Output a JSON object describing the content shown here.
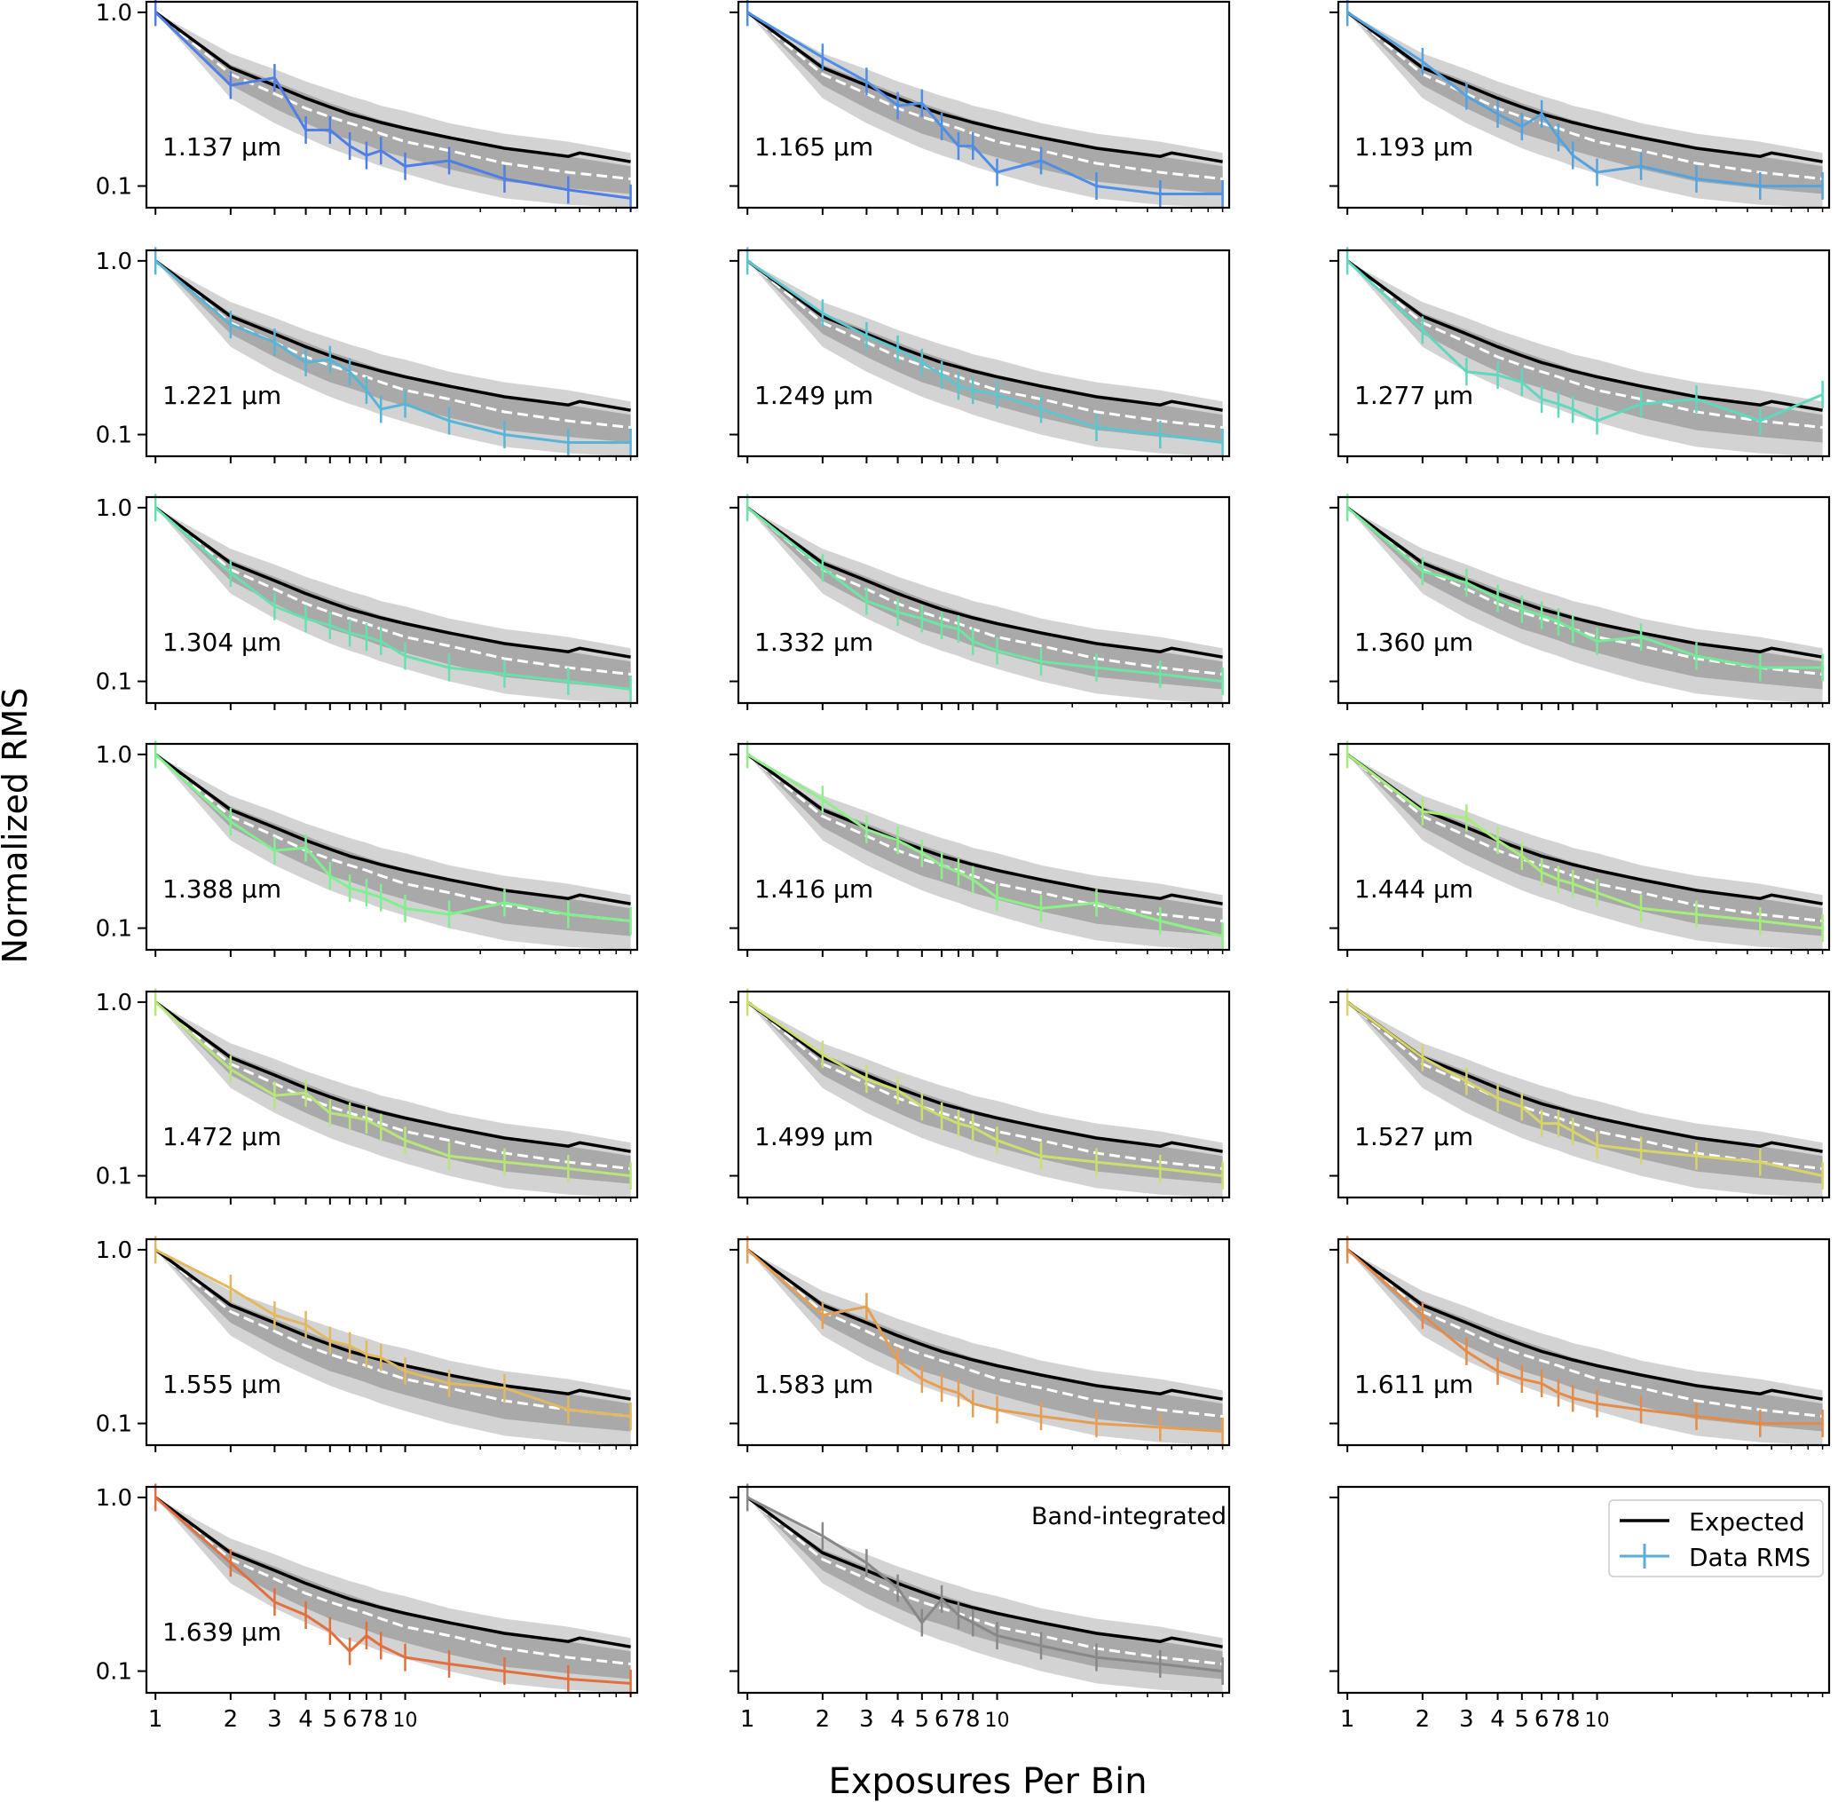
{
  "figure": {
    "ylabel": "Normalized RMS",
    "xlabel": "Exposures Per Bin",
    "legend": {
      "expected_label": "Expected",
      "data_label": "Data RMS",
      "placement": "bottom-right panel"
    }
  },
  "colors": {
    "expected": "#000000",
    "expected_white_dashed": "#ffffff",
    "band_outer": "#d3d3d3",
    "band_inner": "#a9a9a9",
    "legend_data": "#5aaedc"
  },
  "chart_data": {
    "type": "line",
    "scale": {
      "x": "log",
      "y": "log"
    },
    "xlim": [
      0.92,
      85
    ],
    "ylim": [
      0.075,
      1.15
    ],
    "x_ticks": [
      1,
      2,
      3,
      4,
      5,
      6,
      7,
      8,
      10
    ],
    "x_tick_labels": [
      "1",
      "2",
      "3",
      "4",
      "5",
      "6",
      "7",
      "8",
      "10"
    ],
    "y_ticks": [
      1.0,
      0.1
    ],
    "y_tick_labels": [
      "1.0",
      "0.1"
    ],
    "panels": [
      {
        "label": "1.137 μm",
        "color": "#4f7ee6",
        "rms": [
          1.0,
          0.38,
          0.42,
          0.21,
          0.21,
          0.17,
          0.15,
          0.16,
          0.13,
          0.14,
          0.11,
          0.095,
          0.085
        ]
      },
      {
        "label": "1.165 μm",
        "color": "#4e8ee6",
        "rms": [
          1.0,
          0.55,
          0.4,
          0.29,
          0.3,
          0.22,
          0.17,
          0.17,
          0.12,
          0.14,
          0.1,
          0.09,
          0.09
        ]
      },
      {
        "label": "1.193 μm",
        "color": "#55a3de",
        "rms": [
          1.0,
          0.52,
          0.33,
          0.26,
          0.22,
          0.26,
          0.19,
          0.15,
          0.12,
          0.13,
          0.11,
          0.1,
          0.1
        ]
      },
      {
        "label": "1.221 μm",
        "color": "#58b5d8",
        "rms": [
          1.0,
          0.43,
          0.34,
          0.26,
          0.27,
          0.23,
          0.18,
          0.14,
          0.15,
          0.12,
          0.1,
          0.09,
          0.09
        ]
      },
      {
        "label": "1.249 μm",
        "color": "#5ac6d0",
        "rms": [
          1.0,
          0.5,
          0.37,
          0.31,
          0.26,
          0.22,
          0.19,
          0.18,
          0.17,
          0.14,
          0.11,
          0.1,
          0.09
        ]
      },
      {
        "label": "1.277 μm",
        "color": "#5fd8c0",
        "rms": [
          1.0,
          0.4,
          0.23,
          0.22,
          0.2,
          0.16,
          0.15,
          0.14,
          0.12,
          0.15,
          0.16,
          0.12,
          0.17
        ]
      },
      {
        "label": "1.304 μm",
        "color": "#68e0ae",
        "rms": [
          1.0,
          0.42,
          0.27,
          0.23,
          0.21,
          0.19,
          0.18,
          0.17,
          0.14,
          0.12,
          0.11,
          0.1,
          0.09
        ]
      },
      {
        "label": "1.332 μm",
        "color": "#6ce6a2",
        "rms": [
          1.0,
          0.45,
          0.29,
          0.25,
          0.23,
          0.21,
          0.2,
          0.17,
          0.15,
          0.13,
          0.12,
          0.11,
          0.1
        ]
      },
      {
        "label": "1.360 μm",
        "color": "#73ea98",
        "rms": [
          1.0,
          0.43,
          0.37,
          0.3,
          0.26,
          0.24,
          0.22,
          0.2,
          0.17,
          0.18,
          0.14,
          0.12,
          0.12
        ]
      },
      {
        "label": "1.388 μm",
        "color": "#7ef08e",
        "rms": [
          1.0,
          0.41,
          0.28,
          0.29,
          0.2,
          0.17,
          0.16,
          0.15,
          0.13,
          0.12,
          0.14,
          0.12,
          0.11
        ]
      },
      {
        "label": "1.416 μm",
        "color": "#8ef088",
        "rms": [
          1.0,
          0.55,
          0.37,
          0.32,
          0.27,
          0.23,
          0.21,
          0.19,
          0.15,
          0.13,
          0.14,
          0.11,
          0.09
        ]
      },
      {
        "label": "1.444 μm",
        "color": "#a6ee7a",
        "rms": [
          1.0,
          0.47,
          0.43,
          0.32,
          0.26,
          0.21,
          0.19,
          0.18,
          0.16,
          0.13,
          0.12,
          0.11,
          0.1
        ]
      },
      {
        "label": "1.472 μm",
        "color": "#b8e67a",
        "rms": [
          1.0,
          0.41,
          0.29,
          0.3,
          0.23,
          0.22,
          0.21,
          0.19,
          0.16,
          0.13,
          0.12,
          0.11,
          0.1
        ]
      },
      {
        "label": "1.499 μm",
        "color": "#cae06c",
        "rms": [
          1.0,
          0.5,
          0.36,
          0.31,
          0.25,
          0.22,
          0.2,
          0.19,
          0.16,
          0.13,
          0.12,
          0.11,
          0.1
        ]
      },
      {
        "label": "1.527 μm",
        "color": "#d8d46a",
        "rms": [
          1.0,
          0.48,
          0.35,
          0.28,
          0.25,
          0.2,
          0.2,
          0.18,
          0.15,
          0.14,
          0.13,
          0.12,
          0.1
        ]
      },
      {
        "label": "1.555 μm",
        "color": "#e2b860",
        "rms": [
          1.0,
          0.6,
          0.42,
          0.37,
          0.3,
          0.28,
          0.25,
          0.24,
          0.2,
          0.17,
          0.16,
          0.12,
          0.11
        ]
      },
      {
        "label": "1.583 μm",
        "color": "#e69f52",
        "rms": [
          1.0,
          0.42,
          0.47,
          0.23,
          0.18,
          0.16,
          0.15,
          0.13,
          0.12,
          0.11,
          0.1,
          0.095,
          0.09
        ]
      },
      {
        "label": "1.611 μm",
        "color": "#e58b48",
        "rms": [
          1.0,
          0.42,
          0.26,
          0.2,
          0.18,
          0.17,
          0.15,
          0.14,
          0.13,
          0.12,
          0.11,
          0.1,
          0.1
        ]
      },
      {
        "label": "1.639 μm",
        "color": "#e2703e",
        "rms": [
          1.0,
          0.42,
          0.25,
          0.21,
          0.17,
          0.13,
          0.16,
          0.14,
          0.12,
          0.11,
          0.1,
          0.09,
          0.085
        ]
      },
      {
        "label": "Band-integrated",
        "color": "#888888",
        "rms": [
          1.0,
          0.6,
          0.42,
          0.3,
          0.19,
          0.26,
          0.21,
          0.19,
          0.16,
          0.14,
          0.12,
          0.11,
          0.1
        ]
      }
    ],
    "rms_x": [
      1,
      2,
      3,
      4,
      5,
      6,
      7,
      8,
      10,
      15,
      25,
      45,
      80
    ],
    "expected": {
      "x": [
        1,
        2,
        3,
        4,
        5,
        6,
        7,
        8,
        10,
        15,
        25,
        45,
        50,
        80
      ],
      "y": [
        1.0,
        0.48,
        0.38,
        0.32,
        0.285,
        0.26,
        0.245,
        0.232,
        0.215,
        0.19,
        0.165,
        0.148,
        0.155,
        0.138
      ]
    },
    "expected_dashed": {
      "x": [
        1,
        2,
        3,
        4,
        5,
        6,
        7,
        8,
        10,
        15,
        25,
        45,
        80
      ],
      "y": [
        1.0,
        0.44,
        0.34,
        0.28,
        0.25,
        0.23,
        0.215,
        0.2,
        0.18,
        0.16,
        0.135,
        0.12,
        0.11
      ]
    },
    "band_outer": {
      "x": [
        1,
        2,
        3,
        4,
        5,
        6,
        7,
        8,
        10,
        15,
        25,
        45,
        80
      ],
      "low": [
        1.0,
        0.32,
        0.23,
        0.19,
        0.165,
        0.15,
        0.14,
        0.13,
        0.118,
        0.1,
        0.085,
        0.078,
        0.075
      ],
      "high": [
        1.0,
        0.58,
        0.47,
        0.4,
        0.36,
        0.33,
        0.31,
        0.29,
        0.27,
        0.23,
        0.2,
        0.18,
        0.155
      ]
    },
    "band_inner": {
      "x": [
        1,
        2,
        3,
        4,
        5,
        6,
        7,
        8,
        10,
        15,
        25,
        45,
        80
      ],
      "low": [
        1.0,
        0.38,
        0.28,
        0.23,
        0.2,
        0.185,
        0.172,
        0.16,
        0.146,
        0.125,
        0.106,
        0.097,
        0.09
      ],
      "high": [
        1.0,
        0.5,
        0.4,
        0.34,
        0.3,
        0.275,
        0.255,
        0.24,
        0.22,
        0.19,
        0.165,
        0.148,
        0.13
      ]
    }
  }
}
